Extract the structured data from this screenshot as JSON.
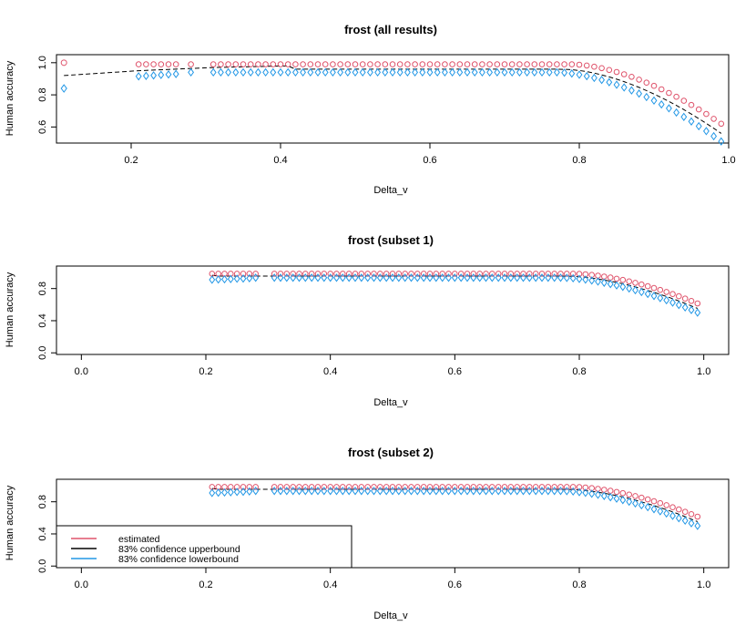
{
  "colors": {
    "estimated": "#DF536B",
    "upper": "#000000",
    "lower": "#2297E6",
    "axis": "#000000"
  },
  "legend": {
    "entries": [
      {
        "label": "estimated",
        "color": "#DF536B"
      },
      {
        "label": "83% confidence upperbound",
        "color": "#000000"
      },
      {
        "label": "83% confidence lowerbound",
        "color": "#2297E6"
      }
    ],
    "placement": "bottom-left of third panel"
  },
  "chart_data": [
    {
      "type": "scatter",
      "title": "frost (all results)",
      "xlabel": "Delta_v",
      "ylabel": "Human accuracy",
      "xlim": [
        0.1,
        1.0
      ],
      "ylim": [
        0.5,
        1.05
      ],
      "xticks": [
        "0.2",
        "0.4",
        "0.6",
        "0.8",
        "1.0"
      ],
      "xtick_values": [
        0.2,
        0.4,
        0.6,
        0.8,
        1.0
      ],
      "yticks": [
        "0.6",
        "0.8",
        "1.0"
      ],
      "ytick_values": [
        0.6,
        0.8,
        1.0
      ],
      "isolated_points": {
        "x": 0.11,
        "estimated": 1.0,
        "lower": 0.84
      },
      "fit_line": {
        "x": [
          0.11,
          0.21,
          0.31,
          0.41
        ],
        "y": [
          0.92,
          0.95,
          0.97,
          0.98
        ]
      },
      "series": [
        "estimated",
        "upperbound",
        "lowerbound"
      ]
    },
    {
      "type": "scatter",
      "title": "frost (subset 1)",
      "xlabel": "Delta_v",
      "ylabel": "Human accuracy",
      "xlim": [
        -0.04,
        1.04
      ],
      "ylim": [
        -0.02,
        1.08
      ],
      "xticks": [
        "0.0",
        "0.2",
        "0.4",
        "0.6",
        "0.8",
        "1.0"
      ],
      "xtick_values": [
        0.0,
        0.2,
        0.4,
        0.6,
        0.8,
        1.0
      ],
      "yticks": [
        "0.0",
        "0.4",
        "0.8"
      ],
      "ytick_values": [
        0.0,
        0.4,
        0.8
      ],
      "series": [
        "estimated",
        "upperbound",
        "lowerbound"
      ]
    },
    {
      "type": "scatter",
      "title": "frost (subset 2)",
      "xlabel": "Delta_v",
      "ylabel": "Human accuracy",
      "xlim": [
        -0.04,
        1.04
      ],
      "ylim": [
        -0.02,
        1.08
      ],
      "xticks": [
        "0.0",
        "0.2",
        "0.4",
        "0.6",
        "0.8",
        "1.0"
      ],
      "xtick_values": [
        0.0,
        0.2,
        0.4,
        0.6,
        0.8,
        1.0
      ],
      "yticks": [
        "0.0",
        "0.4",
        "0.8"
      ],
      "ytick_values": [
        0.0,
        0.4,
        0.8
      ],
      "series": [
        "estimated",
        "upperbound",
        "lowerbound"
      ]
    }
  ]
}
